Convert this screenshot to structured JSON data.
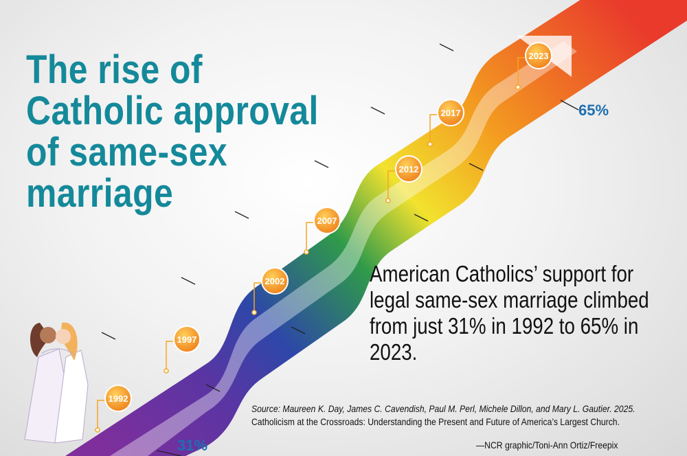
{
  "header": {
    "title": "The rise of Catholic approval of same-sex marriage",
    "subtitle": "American Catholics’ support for legal same-sex marriage climbed from just 31% in 1992 to 65% in 2023."
  },
  "footer": {
    "source_citation": "Source: Maureen K. Day, James C. Cavendish, Paul M. Perl, Michele Dillon, and Mary L. Gautier. 2025.",
    "source_book": "Catholicism at the Crossroads: Understanding the Present and Future of America’s Largest Church.",
    "credit": "—NCR graphic/Toni-Ann Ortiz/Freepix"
  },
  "colors": {
    "title": "#14899a",
    "band_stops": [
      "#7e2f9c",
      "#2d47a8",
      "#2f9a4a",
      "#f2e22e",
      "#f39a20",
      "#e93a2c"
    ],
    "marker": "#f5a623",
    "axis_label": "#1e6fb0"
  },
  "chart_data": {
    "type": "line",
    "x": [
      1992,
      1997,
      2002,
      2007,
      2012,
      2017,
      2023
    ],
    "tick_labels": [
      "1992",
      "1997",
      "2002",
      "2007",
      "2012",
      "2017",
      "2023"
    ],
    "series": [
      {
        "values": [
          31,
          null,
          null,
          null,
          null,
          null,
          65
        ]
      }
    ],
    "value_labels": [
      "31%",
      "65%"
    ]
  },
  "illustration": {
    "name": "couple-illustration"
  }
}
